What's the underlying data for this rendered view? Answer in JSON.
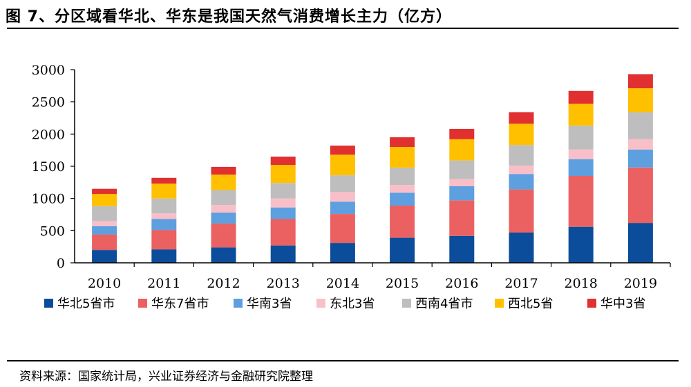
{
  "header": {
    "title": "图 7、分区域看华北、华东是我国天然气消费增长主力（亿方）"
  },
  "footer": {
    "source": "资料来源：国家统计局，兴业证券经济与金融研究院整理"
  },
  "chart_data": {
    "type": "bar",
    "stacked": true,
    "title": "",
    "xlabel": "",
    "ylabel": "",
    "ylim": [
      0,
      3000
    ],
    "yticks": [
      0,
      500,
      1000,
      1500,
      2000,
      2500,
      3000
    ],
    "grid": false,
    "legend_position": "bottom",
    "categories": [
      "2010",
      "2011",
      "2012",
      "2013",
      "2014",
      "2015",
      "2016",
      "2017",
      "2018",
      "2019"
    ],
    "series": [
      {
        "name": "华北5省市",
        "color": "#0B4D9A",
        "values": [
          200,
          210,
          240,
          270,
          310,
          390,
          420,
          470,
          560,
          620
        ]
      },
      {
        "name": "华东7省市",
        "color": "#EB6161",
        "values": [
          240,
          300,
          370,
          410,
          450,
          500,
          550,
          670,
          790,
          860
        ]
      },
      {
        "name": "华南3省",
        "color": "#5E9FE0",
        "values": [
          130,
          170,
          170,
          180,
          190,
          200,
          220,
          240,
          260,
          280
        ]
      },
      {
        "name": "东北3省",
        "color": "#F9BFC9",
        "values": [
          80,
          90,
          120,
          140,
          150,
          120,
          110,
          130,
          150,
          160
        ]
      },
      {
        "name": "西南4省市",
        "color": "#BEBEBE",
        "values": [
          230,
          230,
          230,
          240,
          260,
          270,
          290,
          320,
          370,
          420
        ]
      },
      {
        "name": "西北5省",
        "color": "#FFC000",
        "values": [
          190,
          230,
          240,
          280,
          320,
          320,
          330,
          330,
          340,
          370
        ]
      },
      {
        "name": "华中3省",
        "color": "#E03030",
        "values": [
          80,
          90,
          120,
          130,
          140,
          150,
          160,
          180,
          200,
          220
        ]
      }
    ]
  }
}
